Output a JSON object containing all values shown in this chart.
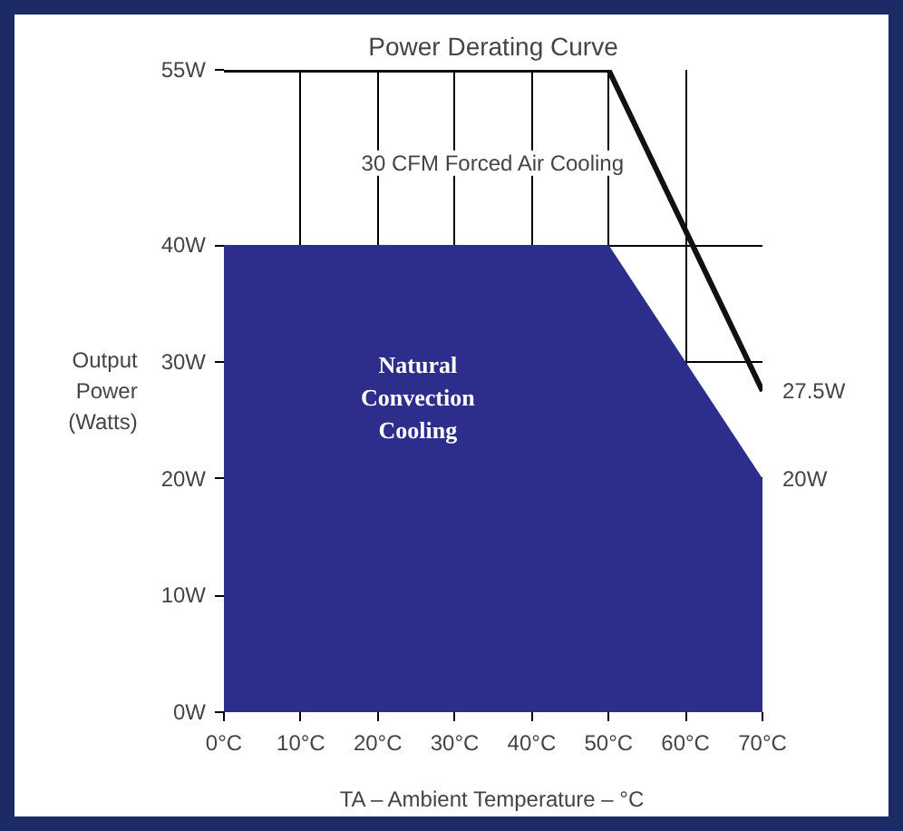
{
  "chart_data": {
    "type": "line",
    "title": "Power Derating Curve",
    "xlabel": "TA – Ambient Temperature – °C",
    "ylabel": "Output Power (Watts)",
    "x": [
      0,
      50,
      70
    ],
    "series": [
      {
        "type": "area",
        "color": "#2d2d8c",
        "values": [
          40,
          40,
          20
        ]
      },
      {
        "color": "#111111",
        "values": [
          55,
          55,
          27.5
        ]
      }
    ],
    "xlim": [
      0,
      70
    ],
    "ylim": [
      0,
      55
    ],
    "xticks": [
      {
        "value": 0,
        "label": "0°C"
      },
      {
        "value": 10,
        "label": "10°C"
      },
      {
        "value": 20,
        "label": "20°C"
      },
      {
        "value": 30,
        "label": "30°C"
      },
      {
        "value": 40,
        "label": "40°C"
      },
      {
        "value": 50,
        "label": "50°C"
      },
      {
        "value": 60,
        "label": "60°C"
      },
      {
        "value": 70,
        "label": "70°C"
      }
    ],
    "yticks": [
      {
        "value": 0,
        "label": "0W"
      },
      {
        "value": 10,
        "label": "10W"
      },
      {
        "value": 20,
        "label": "20W"
      },
      {
        "value": 30,
        "label": "30W"
      },
      {
        "value": 40,
        "label": "40W"
      },
      {
        "value": 55,
        "label": "55W"
      }
    ],
    "grid": true,
    "annotations": [
      "30 CFM Forced Air Cooling",
      "Natural Convection Cooling",
      {
        "text": "27.5W",
        "x": 70,
        "y": 27.5
      },
      {
        "text": "20W",
        "x": 70,
        "y": 20
      }
    ]
  }
}
